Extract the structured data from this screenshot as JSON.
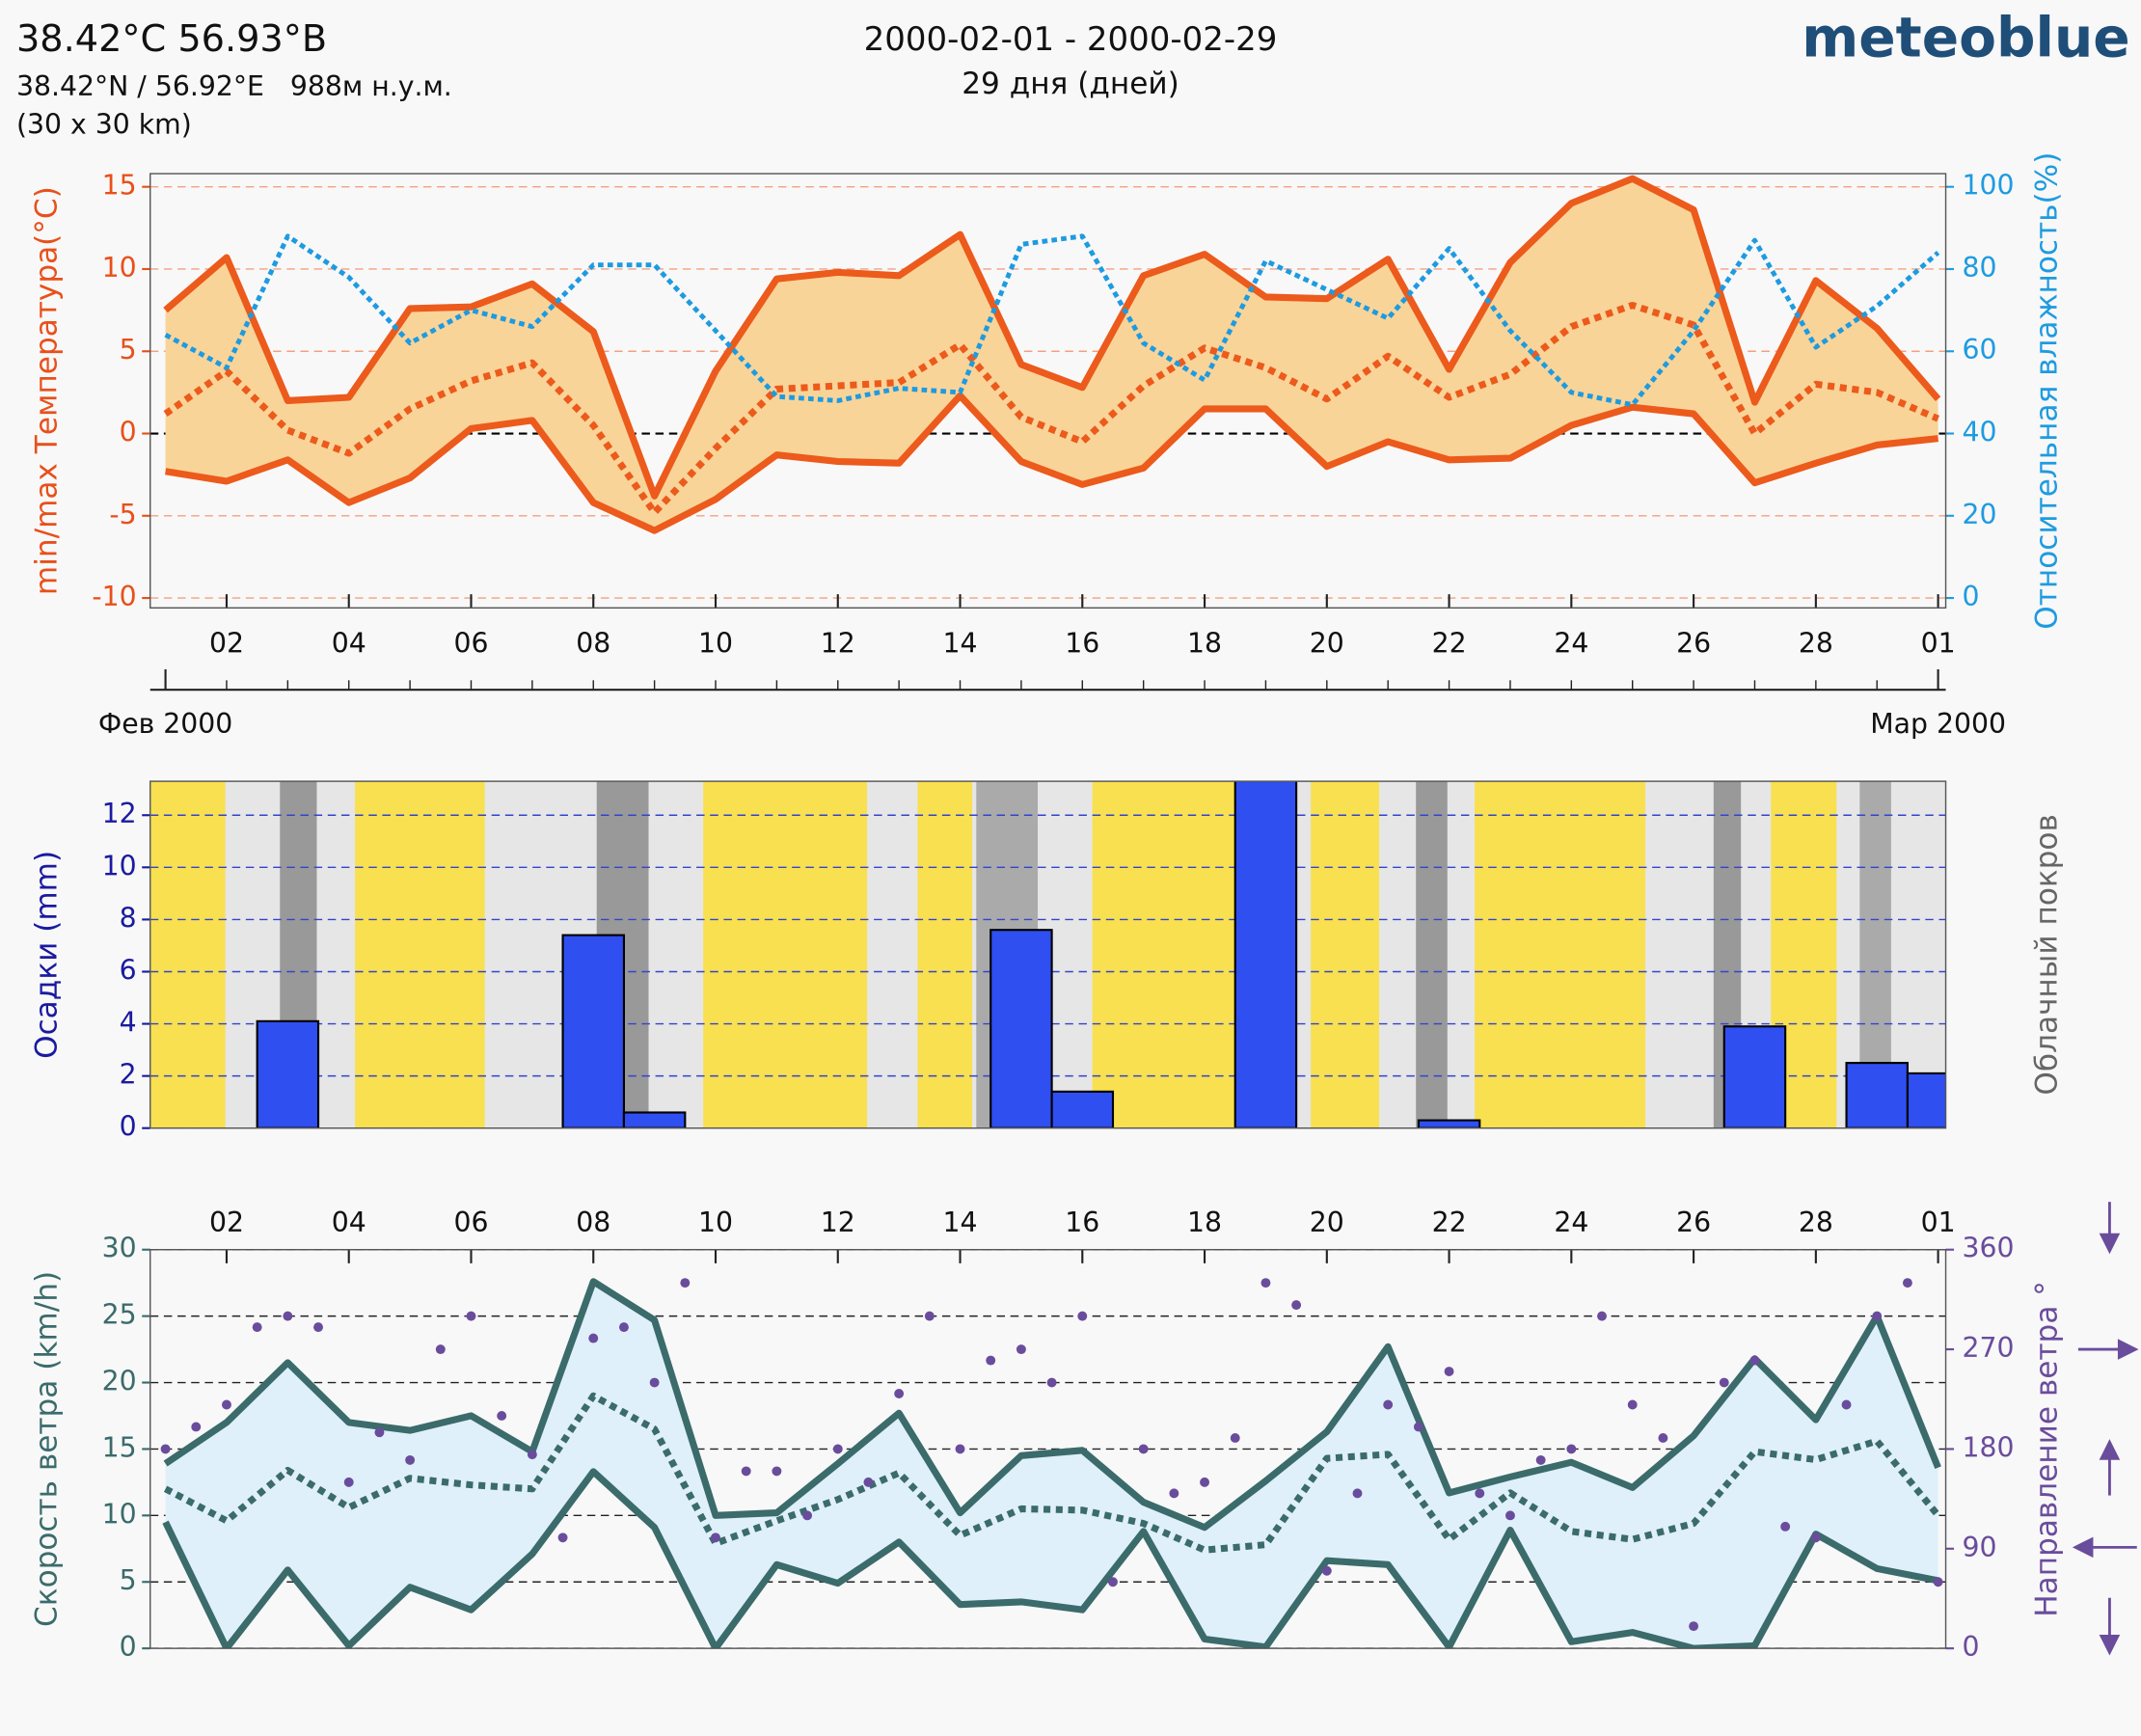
{
  "header": {
    "title": "38.42°C 56.93°В",
    "coords": "38.42°N / 56.92°E   988м н.у.м.",
    "resolution": "(30 x 30 km)",
    "period": "2000-02-01 - 2000-02-29",
    "days": "29 дня (дней)",
    "brand": "meteoblue"
  },
  "chart_data": [
    {
      "type": "line",
      "y_label": "min/max Температура(°C)",
      "y2_label": "Относительная влажность(%)",
      "x": [
        "2000-02-01",
        "2000-02-02",
        "2000-02-03",
        "2000-02-04",
        "2000-02-05",
        "2000-02-06",
        "2000-02-07",
        "2000-02-08",
        "2000-02-09",
        "2000-02-10",
        "2000-02-11",
        "2000-02-12",
        "2000-02-13",
        "2000-02-14",
        "2000-02-15",
        "2000-02-16",
        "2000-02-17",
        "2000-02-18",
        "2000-02-19",
        "2000-02-20",
        "2000-02-21",
        "2000-02-22",
        "2000-02-23",
        "2000-02-24",
        "2000-02-25",
        "2000-02-26",
        "2000-02-27",
        "2000-02-28",
        "2000-02-29",
        "2000-03-01"
      ],
      "xlim": [
        "2000-01-31T18:00",
        "2000-03-01T03:00"
      ],
      "xticks": [
        {
          "value": "2000-02-02",
          "label": "02"
        },
        {
          "value": "2000-02-04",
          "label": "04"
        },
        {
          "value": "2000-02-06",
          "label": "06"
        },
        {
          "value": "2000-02-08",
          "label": "08"
        },
        {
          "value": "2000-02-10",
          "label": "10"
        },
        {
          "value": "2000-02-12",
          "label": "12"
        },
        {
          "value": "2000-02-14",
          "label": "14"
        },
        {
          "value": "2000-02-16",
          "label": "16"
        },
        {
          "value": "2000-02-18",
          "label": "18"
        },
        {
          "value": "2000-02-20",
          "label": "20"
        },
        {
          "value": "2000-02-22",
          "label": "22"
        },
        {
          "value": "2000-02-24",
          "label": "24"
        },
        {
          "value": "2000-02-26",
          "label": "26"
        },
        {
          "value": "2000-02-28",
          "label": "28"
        },
        {
          "value": "2000-03-01",
          "label": "01"
        }
      ],
      "month_ticks": [
        {
          "value": "2000-02-01",
          "label": "Фев 2000"
        },
        {
          "value": "2000-03-01",
          "label": "Мар 2000"
        }
      ],
      "ylim": [
        -10.6,
        15.8
      ],
      "yticks": [
        -10,
        -5,
        0,
        5,
        10,
        15
      ],
      "y2lim": [
        -2.4,
        103.2
      ],
      "y2ticks": [
        0,
        20,
        40,
        60,
        80,
        100
      ],
      "grid": true,
      "fill_color": "#f9d498",
      "series": [
        {
          "color": "#ec5a1c",
          "style": "solid",
          "values": [
            7.5,
            10.7,
            2.0,
            2.2,
            7.6,
            7.7,
            9.1,
            6.2,
            -3.8,
            3.8,
            9.4,
            9.8,
            9.6,
            12.1,
            4.2,
            2.8,
            9.6,
            10.9,
            8.3,
            8.2,
            10.6,
            3.9,
            10.4,
            14.0,
            15.5,
            13.6,
            1.9,
            9.3,
            6.4,
            2.1
          ]
        },
        {
          "color": "#ec5a1c",
          "style": "dotted",
          "values": [
            1.2,
            3.8,
            0.2,
            -1.2,
            1.5,
            3.2,
            4.3,
            0.5,
            -4.8,
            -0.9,
            2.7,
            2.9,
            3.1,
            5.4,
            1.0,
            -0.5,
            2.9,
            5.2,
            4.0,
            2.1,
            4.7,
            2.2,
            3.6,
            6.5,
            7.8,
            6.6,
            0,
            3.0,
            2.5,
            0.9
          ]
        },
        {
          "color": "#ec5a1c",
          "style": "solid",
          "values": [
            -2.3,
            -2.9,
            -1.6,
            -4.2,
            -2.7,
            0.3,
            0.8,
            -4.2,
            -5.9,
            -4.0,
            -1.3,
            -1.7,
            -1.8,
            2.3,
            -1.7,
            -3.1,
            -2.1,
            1.5,
            1.5,
            -2.0,
            -0.5,
            -1.6,
            -1.5,
            0.5,
            1.6,
            1.2,
            -3.0,
            -1.8,
            -0.7,
            -0.3
          ]
        },
        {
          "color": "#1e9be0",
          "style": "dotted",
          "axis": "y2",
          "values": [
            64,
            56,
            88,
            78,
            62,
            70,
            66,
            81,
            81,
            65,
            49,
            48,
            51,
            50,
            86,
            88,
            62,
            53,
            82,
            75,
            68,
            85,
            65,
            50,
            47,
            65,
            87,
            61,
            71,
            84
          ]
        }
      ]
    },
    {
      "type": "bar",
      "y_label": "Осадки (mm)",
      "y2_label": "Облачный покров",
      "x": [
        "2000-02-01",
        "2000-02-02",
        "2000-02-03",
        "2000-02-04",
        "2000-02-05",
        "2000-02-06",
        "2000-02-07",
        "2000-02-08",
        "2000-02-09",
        "2000-02-10",
        "2000-02-11",
        "2000-02-12",
        "2000-02-13",
        "2000-02-14",
        "2000-02-15",
        "2000-02-16",
        "2000-02-17",
        "2000-02-18",
        "2000-02-19",
        "2000-02-20",
        "2000-02-21",
        "2000-02-22",
        "2000-02-23",
        "2000-02-24",
        "2000-02-25",
        "2000-02-26",
        "2000-02-27",
        "2000-02-28",
        "2000-02-29",
        "2000-03-01"
      ],
      "xlim": [
        "2000-01-31T18:00",
        "2000-03-01T03:00"
      ],
      "ylim": [
        0,
        13.3
      ],
      "yticks": [
        0,
        2,
        4,
        6,
        8,
        10,
        12
      ],
      "grid": true,
      "series": [
        {
          "color": "#2f4ff0",
          "values": [
            0,
            0,
            4.1,
            0,
            0,
            0,
            0,
            7.4,
            0.6,
            0,
            0,
            0,
            0,
            0,
            7.6,
            1.4,
            0,
            0,
            13.4,
            0,
            0,
            0.3,
            0,
            0,
            0,
            0,
            3.9,
            0,
            2.5,
            2.1
          ]
        }
      ]
    },
    {
      "type": "line",
      "y_label": "Скорость ветра (km/h)",
      "y2_label": "Направление ветра °",
      "x": [
        "2000-02-01",
        "2000-02-02",
        "2000-02-03",
        "2000-02-04",
        "2000-02-05",
        "2000-02-06",
        "2000-02-07",
        "2000-02-08",
        "2000-02-09",
        "2000-02-10",
        "2000-02-11",
        "2000-02-12",
        "2000-02-13",
        "2000-02-14",
        "2000-02-15",
        "2000-02-16",
        "2000-02-17",
        "2000-02-18",
        "2000-02-19",
        "2000-02-20",
        "2000-02-21",
        "2000-02-22",
        "2000-02-23",
        "2000-02-24",
        "2000-02-25",
        "2000-02-26",
        "2000-02-27",
        "2000-02-28",
        "2000-02-29",
        "2000-03-01"
      ],
      "xlim": [
        "2000-01-31T18:00",
        "2000-03-01T03:00"
      ],
      "xticks": [
        {
          "value": "2000-02-02",
          "label": "02"
        },
        {
          "value": "2000-02-04",
          "label": "04"
        },
        {
          "value": "2000-02-06",
          "label": "06"
        },
        {
          "value": "2000-02-08",
          "label": "08"
        },
        {
          "value": "2000-02-10",
          "label": "10"
        },
        {
          "value": "2000-02-12",
          "label": "12"
        },
        {
          "value": "2000-02-14",
          "label": "14"
        },
        {
          "value": "2000-02-16",
          "label": "16"
        },
        {
          "value": "2000-02-18",
          "label": "18"
        },
        {
          "value": "2000-02-20",
          "label": "20"
        },
        {
          "value": "2000-02-22",
          "label": "22"
        },
        {
          "value": "2000-02-24",
          "label": "24"
        },
        {
          "value": "2000-02-26",
          "label": "26"
        },
        {
          "value": "2000-02-28",
          "label": "28"
        },
        {
          "value": "2000-03-01",
          "label": "01"
        }
      ],
      "ylim": [
        0,
        30
      ],
      "yticks": [
        0,
        5,
        10,
        15,
        20,
        25,
        30
      ],
      "y2lim": [
        0,
        360
      ],
      "y2ticks": [
        0,
        90,
        180,
        270,
        360
      ],
      "grid": true,
      "fill_color": "#dff0fa",
      "series": [
        {
          "color": "#3b6b6b",
          "style": "solid",
          "values": [
            13.9,
            17.0,
            21.5,
            17.0,
            16.4,
            17.5,
            14.8,
            27.6,
            24.7,
            10.0,
            10.2,
            13.9,
            17.7,
            10.2,
            14.5,
            14.9,
            11.0,
            9.1,
            12.6,
            16.3,
            22.7,
            11.7,
            12.9,
            14.0,
            12.1,
            16.0,
            21.8,
            17.2,
            25.0,
            13.6
          ]
        },
        {
          "color": "#3b6b6b",
          "style": "dotted",
          "values": [
            12.0,
            9.6,
            13.4,
            10.6,
            12.8,
            12.3,
            12.0,
            19.0,
            16.5,
            7.9,
            9.6,
            11.2,
            13.2,
            8.5,
            10.5,
            10.4,
            9.4,
            7.4,
            7.8,
            14.3,
            14.6,
            8.2,
            11.7,
            8.8,
            8.2,
            9.4,
            14.8,
            14.2,
            15.6,
            10.0
          ]
        },
        {
          "color": "#3b6b6b",
          "style": "solid",
          "values": [
            9.5,
            0,
            5.9,
            0.2,
            4.6,
            2.9,
            7.1,
            13.3,
            9.1,
            0,
            6.3,
            4.9,
            8.0,
            3.3,
            3.5,
            2.9,
            8.8,
            0.7,
            0.1,
            6.6,
            6.3,
            0.1,
            8.9,
            0.5,
            1.2,
            0,
            0.2,
            8.6,
            6.0,
            5.1
          ]
        },
        {
          "color": "#6a4c9c",
          "type": "scatter",
          "axis": "y2",
          "x": [
            "2000-02-01T00:00",
            "2000-02-01T12:00",
            "2000-02-02T00:00",
            "2000-02-02T12:00",
            "2000-02-03T00:00",
            "2000-02-03T12:00",
            "2000-02-04T00:00",
            "2000-02-04T12:00",
            "2000-02-05T00:00",
            "2000-02-05T12:00",
            "2000-02-06T00:00",
            "2000-02-06T12:00",
            "2000-02-07T00:00",
            "2000-02-07T12:00",
            "2000-02-08T00:00",
            "2000-02-08T12:00",
            "2000-02-09T00:00",
            "2000-02-09T12:00",
            "2000-02-10T00:00",
            "2000-02-10T12:00",
            "2000-02-11T00:00",
            "2000-02-11T12:00",
            "2000-02-12T00:00",
            "2000-02-12T12:00",
            "2000-02-13T00:00",
            "2000-02-13T12:00",
            "2000-02-14T00:00",
            "2000-02-14T12:00",
            "2000-02-15T00:00",
            "2000-02-15T12:00",
            "2000-02-16T00:00",
            "2000-02-16T12:00",
            "2000-02-17T00:00",
            "2000-02-17T12:00",
            "2000-02-18T00:00",
            "2000-02-18T12:00",
            "2000-02-19T00:00",
            "2000-02-19T12:00",
            "2000-02-20T00:00",
            "2000-02-20T12:00",
            "2000-02-21T00:00",
            "2000-02-21T12:00",
            "2000-02-22T00:00",
            "2000-02-22T12:00",
            "2000-02-23T00:00",
            "2000-02-23T12:00",
            "2000-02-24T00:00",
            "2000-02-24T12:00",
            "2000-02-25T00:00",
            "2000-02-25T12:00",
            "2000-02-26T00:00",
            "2000-02-26T12:00",
            "2000-02-27T00:00",
            "2000-02-27T12:00",
            "2000-02-28T00:00",
            "2000-02-28T12:00",
            "2000-02-29T00:00",
            "2000-02-29T12:00",
            "2000-03-01T00:00"
          ],
          "values": [
            180,
            200,
            220,
            290,
            300,
            290,
            150,
            195,
            170,
            270,
            300,
            210,
            175,
            100,
            280,
            290,
            240,
            330,
            100,
            160,
            160,
            120,
            180,
            150,
            230,
            300,
            180,
            260,
            270,
            240,
            300,
            60,
            180,
            140,
            150,
            190,
            330,
            310,
            70,
            140,
            220,
            200,
            250,
            140,
            120,
            170,
            180,
            300,
            220,
            190,
            20,
            240,
            260,
            110,
            100,
            220,
            300,
            330,
            60
          ]
        }
      ]
    }
  ]
}
